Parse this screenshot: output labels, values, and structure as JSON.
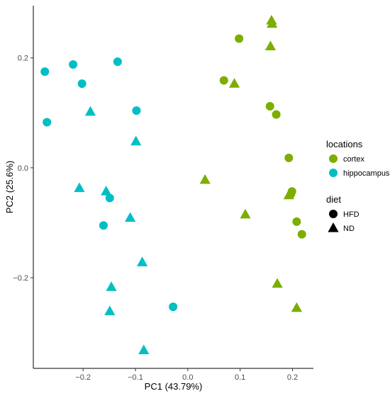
{
  "chart_data": {
    "type": "scatter",
    "xlabel": "PC1 (43.79%)",
    "ylabel": "PC2 (25.6%)",
    "xlim": [
      -0.295,
      0.24
    ],
    "ylim": [
      -0.365,
      0.295
    ],
    "x_ticks": [
      -0.2,
      -0.1,
      0.0,
      0.1,
      0.2
    ],
    "x_tick_labels": [
      "−0.2",
      "−0.1",
      "0.0",
      "0.1",
      "0.2"
    ],
    "y_ticks": [
      -0.2,
      0.0,
      0.2
    ],
    "y_tick_labels": [
      "−0.2",
      "0.0",
      "0.2"
    ],
    "grid": false,
    "legend_position": "right",
    "legends": {
      "color": {
        "title": "locations",
        "entries": [
          {
            "label": "cortex",
            "color": "#7cae00"
          },
          {
            "label": "hippocampus",
            "color": "#00bfc4"
          }
        ]
      },
      "shape": {
        "title": "diet",
        "entries": [
          {
            "label": "HFD",
            "shape": "circle"
          },
          {
            "label": "ND",
            "shape": "triangle"
          }
        ]
      }
    },
    "points": [
      {
        "x": 0.098,
        "y": 0.235,
        "location": "cortex",
        "diet": "HFD"
      },
      {
        "x": 0.069,
        "y": 0.159,
        "location": "cortex",
        "diet": "HFD"
      },
      {
        "x": 0.157,
        "y": 0.112,
        "location": "cortex",
        "diet": "HFD"
      },
      {
        "x": 0.169,
        "y": 0.097,
        "location": "cortex",
        "diet": "HFD"
      },
      {
        "x": 0.193,
        "y": 0.018,
        "location": "cortex",
        "diet": "HFD"
      },
      {
        "x": 0.199,
        "y": -0.043,
        "location": "cortex",
        "diet": "HFD"
      },
      {
        "x": 0.197,
        "y": -0.048,
        "location": "cortex",
        "diet": "HFD"
      },
      {
        "x": 0.208,
        "y": -0.098,
        "location": "cortex",
        "diet": "HFD"
      },
      {
        "x": 0.218,
        "y": -0.121,
        "location": "cortex",
        "diet": "HFD"
      },
      {
        "x": 0.16,
        "y": 0.268,
        "location": "cortex",
        "diet": "ND"
      },
      {
        "x": 0.161,
        "y": 0.262,
        "location": "cortex",
        "diet": "ND"
      },
      {
        "x": 0.158,
        "y": 0.221,
        "location": "cortex",
        "diet": "ND"
      },
      {
        "x": 0.089,
        "y": 0.153,
        "location": "cortex",
        "diet": "ND"
      },
      {
        "x": 0.033,
        "y": -0.022,
        "location": "cortex",
        "diet": "ND"
      },
      {
        "x": 0.193,
        "y": -0.05,
        "location": "cortex",
        "diet": "ND"
      },
      {
        "x": 0.11,
        "y": -0.085,
        "location": "cortex",
        "diet": "ND"
      },
      {
        "x": 0.171,
        "y": -0.211,
        "location": "cortex",
        "diet": "ND"
      },
      {
        "x": 0.208,
        "y": -0.255,
        "location": "cortex",
        "diet": "ND"
      },
      {
        "x": -0.273,
        "y": 0.175,
        "location": "hippocampus",
        "diet": "HFD"
      },
      {
        "x": -0.219,
        "y": 0.188,
        "location": "hippocampus",
        "diet": "HFD"
      },
      {
        "x": -0.134,
        "y": 0.193,
        "location": "hippocampus",
        "diet": "HFD"
      },
      {
        "x": -0.202,
        "y": 0.153,
        "location": "hippocampus",
        "diet": "HFD"
      },
      {
        "x": -0.269,
        "y": 0.083,
        "location": "hippocampus",
        "diet": "HFD"
      },
      {
        "x": -0.098,
        "y": 0.104,
        "location": "hippocampus",
        "diet": "HFD"
      },
      {
        "x": -0.149,
        "y": -0.055,
        "location": "hippocampus",
        "diet": "HFD"
      },
      {
        "x": -0.161,
        "y": -0.105,
        "location": "hippocampus",
        "diet": "HFD"
      },
      {
        "x": -0.028,
        "y": -0.253,
        "location": "hippocampus",
        "diet": "HFD"
      },
      {
        "x": -0.186,
        "y": 0.102,
        "location": "hippocampus",
        "diet": "ND"
      },
      {
        "x": -0.099,
        "y": 0.048,
        "location": "hippocampus",
        "diet": "ND"
      },
      {
        "x": -0.207,
        "y": -0.037,
        "location": "hippocampus",
        "diet": "ND"
      },
      {
        "x": -0.156,
        "y": -0.043,
        "location": "hippocampus",
        "diet": "ND"
      },
      {
        "x": -0.11,
        "y": -0.091,
        "location": "hippocampus",
        "diet": "ND"
      },
      {
        "x": -0.087,
        "y": -0.172,
        "location": "hippocampus",
        "diet": "ND"
      },
      {
        "x": -0.146,
        "y": -0.217,
        "location": "hippocampus",
        "diet": "ND"
      },
      {
        "x": -0.149,
        "y": -0.261,
        "location": "hippocampus",
        "diet": "ND"
      },
      {
        "x": -0.084,
        "y": -0.332,
        "location": "hippocampus",
        "diet": "ND"
      }
    ]
  }
}
